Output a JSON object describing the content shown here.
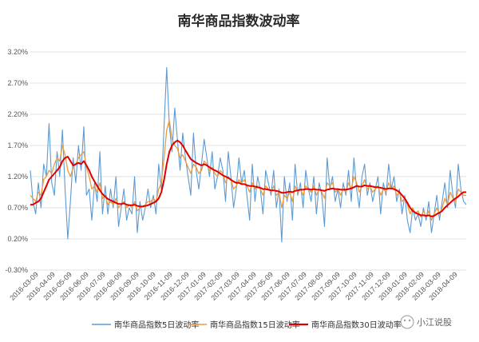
{
  "chart_data": {
    "type": "line",
    "title": "南华商品指数波动率",
    "y_ticks": [
      "3.20%",
      "2.70%",
      "2.20%",
      "1.70%",
      "1.20%",
      "0.70%",
      "0.20%",
      "-0.30%"
    ],
    "ylim": [
      -0.3,
      3.2
    ],
    "x_ticks": [
      "2016-03-09",
      "2016-04-09",
      "2016-05-09",
      "2016-06-09",
      "2016-07-09",
      "2016-08-09",
      "2016-09-09",
      "2016-10-09",
      "2016-11-09",
      "2016-12-09",
      "2017-01-09",
      "2017-02-09",
      "2017-03-09",
      "2017-04-09",
      "2017-05-09",
      "2017-06-09",
      "2017-07-09",
      "2017-08-09",
      "2017-09-09",
      "2017-10-09",
      "2017-11-09",
      "2017-12-09",
      "2018-01-09",
      "2018-02-09",
      "2018-03-09",
      "2018-04-09"
    ],
    "grid": "horizontal",
    "legend_position": "bottom",
    "series": [
      {
        "name": "南华商品指数5日波动率",
        "color": "#5b9bd5",
        "values": [
          1.3,
          0.8,
          0.6,
          1.1,
          0.7,
          1.4,
          1.2,
          2.05,
          1.1,
          0.9,
          1.6,
          1.2,
          1.95,
          1.0,
          0.2,
          0.8,
          1.5,
          1.1,
          1.7,
          1.3,
          2.0,
          0.9,
          1.0,
          0.5,
          1.1,
          0.8,
          1.6,
          0.6,
          1.05,
          0.6,
          1.0,
          0.7,
          1.2,
          0.4,
          0.7,
          1.0,
          0.5,
          0.7,
          0.6,
          1.2,
          0.3,
          0.8,
          0.5,
          0.7,
          1.0,
          0.7,
          0.9,
          0.6,
          1.4,
          1.0,
          2.0,
          2.95,
          2.0,
          1.6,
          2.3,
          1.8,
          1.3,
          1.9,
          1.5,
          1.2,
          0.9,
          1.9,
          1.3,
          1.0,
          1.4,
          1.8,
          1.5,
          1.2,
          1.6,
          1.0,
          1.2,
          1.5,
          1.3,
          0.8,
          1.6,
          1.2,
          0.7,
          1.0,
          1.5,
          1.1,
          1.3,
          0.9,
          0.5,
          1.4,
          0.8,
          1.2,
          1.0,
          0.6,
          1.3,
          1.1,
          0.9,
          1.3,
          0.7,
          1.0,
          0.15,
          1.2,
          0.8,
          1.1,
          0.5,
          1.4,
          0.9,
          1.1,
          0.7,
          1.3,
          1.0,
          0.8,
          1.2,
          0.6,
          1.1,
          0.9,
          0.4,
          1.5,
          1.0,
          1.2,
          0.8,
          1.0,
          0.7,
          1.1,
          0.9,
          1.3,
          0.8,
          1.5,
          1.0,
          0.7,
          1.2,
          1.4,
          0.9,
          1.1,
          0.8,
          1.0,
          1.2,
          0.6,
          1.1,
          0.9,
          1.4,
          1.0,
          1.2,
          0.8,
          1.0,
          0.6,
          0.9,
          0.5,
          0.3,
          0.7,
          0.5,
          0.6,
          0.4,
          0.7,
          0.5,
          0.8,
          0.3,
          0.6,
          0.9,
          0.5,
          0.8,
          1.1,
          0.7,
          1.3,
          0.9,
          0.7,
          1.4,
          1.0,
          0.8,
          0.75
        ]
      },
      {
        "name": "南华商品指数15日波动率",
        "color": "#ed9b3b",
        "values": [
          0.9,
          0.85,
          0.8,
          0.95,
          0.9,
          1.15,
          1.2,
          1.3,
          1.25,
          1.4,
          1.5,
          1.45,
          1.7,
          1.55,
          1.3,
          1.2,
          1.35,
          1.4,
          1.5,
          1.55,
          1.6,
          1.35,
          1.2,
          1.0,
          1.05,
          0.95,
          1.1,
          0.85,
          0.9,
          0.75,
          0.8,
          0.75,
          0.85,
          0.7,
          0.75,
          0.8,
          0.7,
          0.75,
          0.7,
          0.8,
          0.65,
          0.7,
          0.72,
          0.75,
          0.8,
          0.8,
          0.85,
          0.8,
          1.0,
          1.1,
          1.5,
          1.95,
          2.1,
          1.8,
          1.7,
          1.65,
          1.5,
          1.55,
          1.45,
          1.35,
          1.25,
          1.4,
          1.35,
          1.25,
          1.3,
          1.45,
          1.4,
          1.3,
          1.35,
          1.25,
          1.2,
          1.3,
          1.25,
          1.1,
          1.2,
          1.15,
          1.0,
          1.05,
          1.15,
          1.1,
          1.15,
          1.05,
          0.95,
          1.1,
          1.0,
          1.05,
          1.0,
          0.9,
          1.05,
          1.0,
          0.95,
          1.05,
          0.9,
          0.95,
          0.7,
          0.9,
          0.85,
          0.95,
          0.8,
          1.05,
          0.95,
          1.0,
          0.9,
          1.05,
          1.0,
          0.95,
          1.05,
          0.9,
          1.0,
          0.95,
          0.85,
          1.1,
          1.05,
          1.1,
          0.95,
          1.0,
          0.9,
          1.0,
          0.95,
          1.1,
          1.0,
          1.2,
          1.1,
          0.95,
          1.05,
          1.15,
          1.0,
          1.05,
          0.95,
          1.0,
          1.05,
          0.9,
          1.0,
          0.95,
          1.1,
          1.0,
          1.05,
          0.9,
          0.95,
          0.8,
          0.85,
          0.75,
          0.6,
          0.7,
          0.6,
          0.65,
          0.55,
          0.65,
          0.55,
          0.65,
          0.5,
          0.6,
          0.7,
          0.6,
          0.7,
          0.85,
          0.75,
          0.95,
          0.85,
          0.8,
          1.0,
          0.95,
          0.9,
          0.9
        ]
      },
      {
        "name": "南华商品指数30日波动率",
        "color": "#e00000",
        "values": [
          0.75,
          0.75,
          0.78,
          0.8,
          0.85,
          0.95,
          1.05,
          1.15,
          1.2,
          1.25,
          1.3,
          1.35,
          1.45,
          1.5,
          1.52,
          1.45,
          1.38,
          1.4,
          1.42,
          1.4,
          1.45,
          1.38,
          1.3,
          1.2,
          1.12,
          1.05,
          0.98,
          0.92,
          0.88,
          0.84,
          0.82,
          0.8,
          0.78,
          0.76,
          0.76,
          0.77,
          0.75,
          0.74,
          0.74,
          0.75,
          0.73,
          0.72,
          0.72,
          0.73,
          0.74,
          0.76,
          0.78,
          0.8,
          0.85,
          0.95,
          1.15,
          1.4,
          1.6,
          1.7,
          1.75,
          1.78,
          1.75,
          1.7,
          1.62,
          1.55,
          1.48,
          1.45,
          1.42,
          1.4,
          1.38,
          1.4,
          1.38,
          1.35,
          1.32,
          1.3,
          1.28,
          1.25,
          1.22,
          1.2,
          1.18,
          1.15,
          1.12,
          1.1,
          1.1,
          1.08,
          1.08,
          1.06,
          1.05,
          1.05,
          1.04,
          1.03,
          1.02,
          1.0,
          1.0,
          0.99,
          0.98,
          0.98,
          0.97,
          0.96,
          0.94,
          0.94,
          0.95,
          0.96,
          0.95,
          0.97,
          0.98,
          0.99,
          0.99,
          1.0,
          1.0,
          0.99,
          1.0,
          0.99,
          0.99,
          0.98,
          0.97,
          0.99,
          1.0,
          1.01,
          1.0,
          1.0,
          0.99,
          0.99,
          0.99,
          1.0,
          1.01,
          1.03,
          1.05,
          1.04,
          1.04,
          1.06,
          1.05,
          1.05,
          1.04,
          1.03,
          1.03,
          1.02,
          1.01,
          1.0,
          1.01,
          1.01,
          1.0,
          0.98,
          0.95,
          0.9,
          0.85,
          0.78,
          0.7,
          0.65,
          0.62,
          0.6,
          0.58,
          0.58,
          0.57,
          0.58,
          0.56,
          0.57,
          0.6,
          0.62,
          0.65,
          0.7,
          0.74,
          0.78,
          0.82,
          0.85,
          0.88,
          0.92,
          0.95,
          0.95
        ]
      }
    ]
  },
  "watermark": {
    "text": "小江说股"
  }
}
